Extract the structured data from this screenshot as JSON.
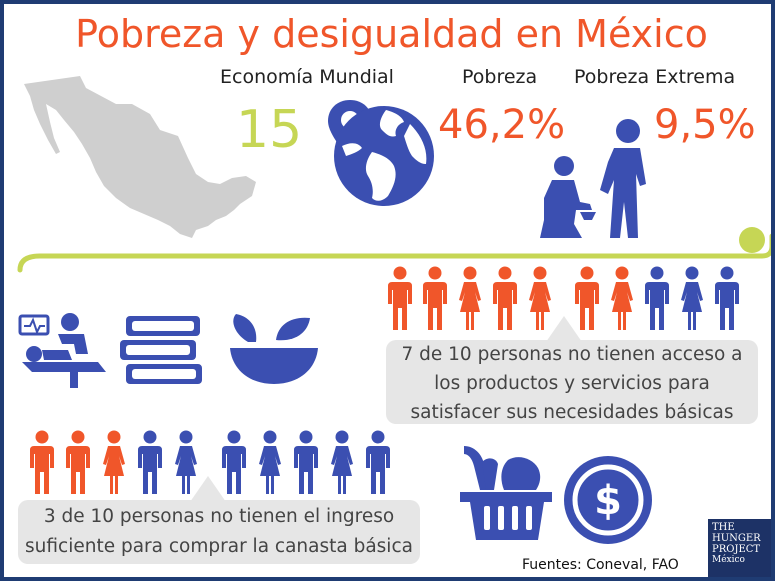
{
  "title": "Pobreza y desigualdad en México",
  "stats": {
    "economia_label": "Economía Mundial",
    "economia_rank": "15",
    "pobreza_label": "Pobreza",
    "pobreza_value": "46,2%",
    "extrema_label": "Pobreza Extrema",
    "extrema_value": "9,5%"
  },
  "services_group": {
    "orange_count": 7,
    "blue_count": 3,
    "text_line1": "7 de 10 personas no tienen acceso a",
    "text_line2": "los productos y servicios para",
    "text_line3": "satisfacer sus necesidades básicas"
  },
  "income_group": {
    "orange_count": 3,
    "blue_count": 7,
    "text_line1": "3 de 10 personas no tienen el ingreso",
    "text_line2": "suficiente para comprar la canasta básica"
  },
  "source": "Fuentes: Coneval, FAO",
  "logo": {
    "line1": "THE",
    "line2": "HUNGER",
    "line3": "PROJECT",
    "line4": "México"
  },
  "colors": {
    "orange": "#f0562a",
    "blue": "#3b4fb1",
    "lime": "#c6d655",
    "gray_map": "#cfcfcf",
    "navy": "#1f3c73"
  },
  "icons": [
    "mexico-map-icon",
    "location-pin-icon",
    "globe-icon",
    "child-beggar-icon",
    "adult-giving-icon",
    "medical-patient-icon",
    "books-icon",
    "food-bowl-icon",
    "grocery-basket-icon",
    "dollar-coin-icon"
  ]
}
